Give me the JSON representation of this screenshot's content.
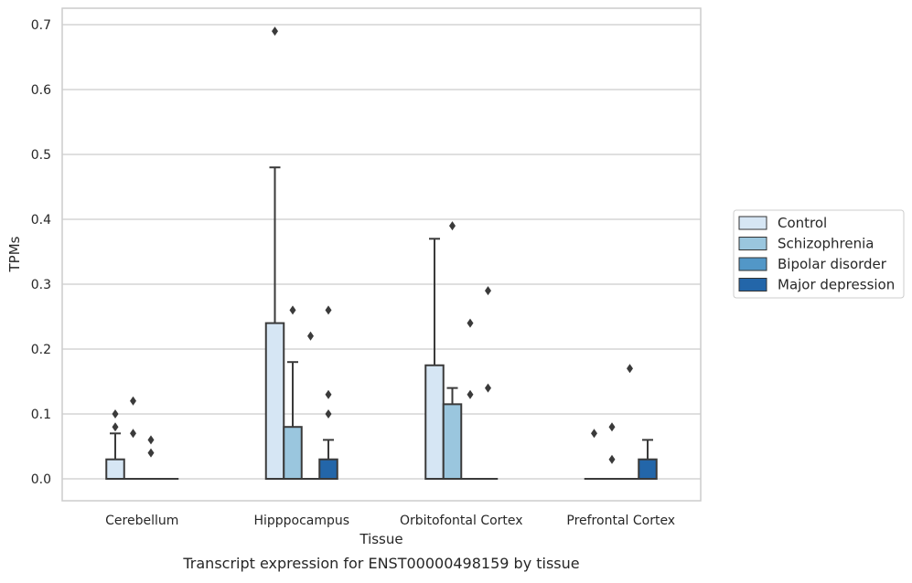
{
  "chart_data": {
    "type": "box",
    "title": "",
    "caption": "Transcript expression for ENST00000498159 by tissue",
    "xlabel": "Tissue",
    "ylabel": "TPMs",
    "ylim": [
      -0.033,
      0.725
    ],
    "yticks": [
      "0.0",
      "0.1",
      "0.2",
      "0.3",
      "0.4",
      "0.5",
      "0.6",
      "0.7"
    ],
    "categories": [
      "Cerebellum",
      "Hipppocampus",
      "Orbitofontal Cortex",
      "Prefrontal Cortex"
    ],
    "grid": true,
    "legend_position": "right",
    "series": [
      {
        "name": "Control",
        "color": "#d6e6f4",
        "boxes": [
          {
            "q1": 0.0,
            "median": 0.0,
            "q3": 0.03,
            "whisker_low": 0.0,
            "whisker_high": 0.07,
            "outliers": [
              0.08,
              0.1
            ]
          },
          {
            "q1": 0.0,
            "median": 0.0,
            "q3": 0.24,
            "whisker_low": 0.0,
            "whisker_high": 0.48,
            "outliers": [
              0.69
            ]
          },
          {
            "q1": 0.0,
            "median": 0.0,
            "q3": 0.175,
            "whisker_low": 0.0,
            "whisker_high": 0.37,
            "outliers": []
          },
          {
            "q1": 0.0,
            "median": 0.0,
            "q3": 0.0,
            "whisker_low": 0.0,
            "whisker_high": 0.0,
            "outliers": [
              0.07
            ]
          }
        ]
      },
      {
        "name": "Schizophrenia",
        "color": "#9ac6de",
        "boxes": [
          {
            "q1": 0.0,
            "median": 0.0,
            "q3": 0.0,
            "whisker_low": 0.0,
            "whisker_high": 0.0,
            "outliers": [
              0.07,
              0.12
            ]
          },
          {
            "q1": 0.0,
            "median": 0.0,
            "q3": 0.08,
            "whisker_low": 0.0,
            "whisker_high": 0.18,
            "outliers": [
              0.26
            ]
          },
          {
            "q1": 0.0,
            "median": 0.0,
            "q3": 0.115,
            "whisker_low": 0.0,
            "whisker_high": 0.14,
            "outliers": [
              0.39
            ]
          },
          {
            "q1": 0.0,
            "median": 0.0,
            "q3": 0.0,
            "whisker_low": 0.0,
            "whisker_high": 0.0,
            "outliers": [
              0.03,
              0.08
            ]
          }
        ]
      },
      {
        "name": "Bipolar disorder",
        "color": "#5297c7",
        "boxes": [
          {
            "q1": 0.0,
            "median": 0.0,
            "q3": 0.0,
            "whisker_low": 0.0,
            "whisker_high": 0.0,
            "outliers": [
              0.04,
              0.06
            ]
          },
          {
            "q1": 0.0,
            "median": 0.0,
            "q3": 0.0,
            "whisker_low": 0.0,
            "whisker_high": 0.0,
            "outliers": [
              0.22
            ]
          },
          {
            "q1": 0.0,
            "median": 0.0,
            "q3": 0.0,
            "whisker_low": 0.0,
            "whisker_high": 0.0,
            "outliers": [
              0.13,
              0.24
            ]
          },
          {
            "q1": 0.0,
            "median": 0.0,
            "q3": 0.0,
            "whisker_low": 0.0,
            "whisker_high": 0.0,
            "outliers": [
              0.17
            ]
          }
        ]
      },
      {
        "name": "Major depression",
        "color": "#2366a9",
        "boxes": [
          {
            "q1": 0.0,
            "median": 0.0,
            "q3": 0.0,
            "whisker_low": 0.0,
            "whisker_high": 0.0,
            "outliers": []
          },
          {
            "q1": 0.0,
            "median": 0.0,
            "q3": 0.03,
            "whisker_low": 0.0,
            "whisker_high": 0.06,
            "outliers": [
              0.1,
              0.13,
              0.26
            ]
          },
          {
            "q1": 0.0,
            "median": 0.0,
            "q3": 0.0,
            "whisker_low": 0.0,
            "whisker_high": 0.0,
            "outliers": [
              0.14,
              0.29
            ]
          },
          {
            "q1": 0.0,
            "median": 0.0,
            "q3": 0.03,
            "whisker_low": 0.0,
            "whisker_high": 0.06,
            "outliers": []
          }
        ]
      }
    ]
  }
}
